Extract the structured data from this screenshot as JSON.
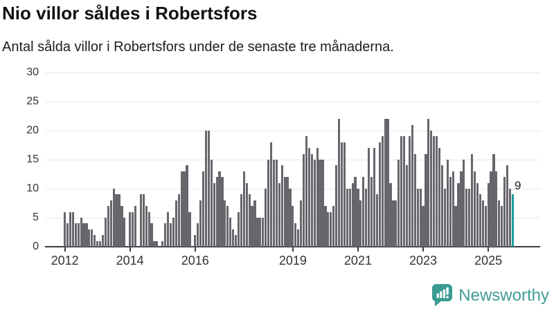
{
  "title": "Nio villor såldes i Robertsfors",
  "subtitle": "Antal sålda villor i Robertsfors under de senaste tre månaderna.",
  "annotation": {
    "label": "9"
  },
  "footer": {
    "brand": "Newsworthy"
  },
  "colors": {
    "bar": "#66666c",
    "highlight": "#189e9e",
    "grid": "#e7e7e7",
    "axis": "#3c3c42",
    "axis_text": "#333333",
    "logo_teal": "#3f9c95",
    "logo_bubble": "#3a9b93"
  },
  "chart_data": {
    "type": "bar",
    "title": "Nio villor såldes i Robertsfors",
    "subtitle": "Antal sålda villor i Robertsfors under de senaste tre månaderna.",
    "x_unit": "month",
    "x_start": "2012-01",
    "x_end": "2025-10",
    "ylim": [
      0,
      30
    ],
    "y_ticks": [
      0,
      5,
      10,
      15,
      20,
      25,
      30
    ],
    "x_ticks": [
      {
        "label": "2012",
        "month_index": 0
      },
      {
        "label": "2014",
        "month_index": 24
      },
      {
        "label": "2016",
        "month_index": 48
      },
      {
        "label": "2019",
        "month_index": 84
      },
      {
        "label": "2021",
        "month_index": 108
      },
      {
        "label": "2023",
        "month_index": 132
      },
      {
        "label": "2025",
        "month_index": 156
      }
    ],
    "grid": true,
    "legend": false,
    "series": [
      {
        "name": "Antal sålda villor",
        "values": [
          6,
          4,
          6,
          6,
          4,
          4,
          5,
          4,
          4,
          3,
          3,
          2,
          1,
          1,
          2,
          5,
          7,
          8,
          10,
          9,
          9,
          7,
          5,
          0,
          6,
          6,
          7,
          0,
          9,
          9,
          7,
          6,
          4,
          1,
          1,
          0,
          1,
          4,
          6,
          4,
          5,
          8,
          9,
          13,
          13,
          14,
          6,
          0,
          2,
          4,
          8,
          13,
          20,
          20,
          15,
          11,
          12,
          13,
          12,
          8,
          7,
          5,
          3,
          2,
          6,
          9,
          13,
          11,
          9,
          7,
          8,
          5,
          5,
          5,
          10,
          15,
          18,
          15,
          15,
          11,
          14,
          12,
          12,
          10,
          7,
          4,
          3,
          8,
          16,
          19,
          17,
          16,
          15,
          17,
          15,
          15,
          7,
          6,
          6,
          7,
          14,
          22,
          18,
          18,
          10,
          10,
          11,
          12,
          10,
          8,
          12,
          10,
          17,
          12,
          17,
          9,
          18,
          19,
          22,
          22,
          11,
          8,
          8,
          15,
          19,
          19,
          14,
          19,
          21,
          16,
          10,
          10,
          7,
          16,
          22,
          20,
          19,
          19,
          17,
          14,
          10,
          15,
          12,
          13,
          7,
          11,
          13,
          15,
          10,
          10,
          16,
          13,
          11,
          9,
          8,
          7,
          11,
          13,
          16,
          13,
          8,
          7,
          12,
          14,
          10,
          9
        ]
      }
    ],
    "highlight_last": true,
    "highlight_value": 9
  }
}
